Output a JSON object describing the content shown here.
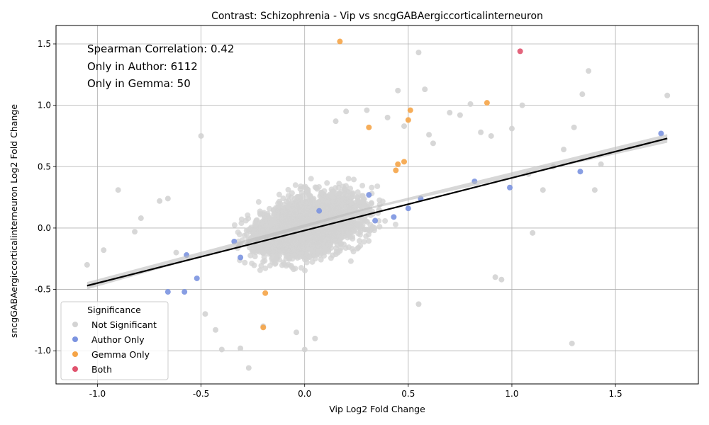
{
  "chart_data": {
    "type": "scatter",
    "title": "Contrast: Schizophrenia - Vip vs sncgGABAergiccorticalinterneuron",
    "xlabel": "Vip Log2 Fold Change",
    "ylabel": "sncgGABAergiccorticalinterneuron Log2 Fold Change",
    "xlim": [
      -1.2,
      1.9
    ],
    "ylim": [
      -1.27,
      1.65
    ],
    "xticks": [
      "-1.0",
      "-0.5",
      "0.0",
      "0.5",
      "1.0",
      "1.5"
    ],
    "yticks": [
      "-1.0",
      "-0.5",
      "0.0",
      "0.5",
      "1.0",
      "1.5"
    ],
    "grid": true,
    "annotations": [
      "Spearman Correlation: 0.42",
      "Only in Author: 6112",
      "Only in Gemma: 50"
    ],
    "legend": {
      "title": "Significance",
      "placement": "lower-left",
      "entries": [
        "Not Significant",
        "Author Only",
        "Gemma Only",
        "Both"
      ]
    },
    "colors": {
      "not_significant": "#d3d3d3",
      "author_only": "#7b93e0",
      "gemma_only": "#f5a447",
      "both": "#e0536e",
      "regression": "#000000",
      "confidence_band": "#bdbdbd"
    },
    "regression": {
      "x": [
        -1.05,
        1.75
      ],
      "y": [
        -0.47,
        0.73
      ]
    },
    "series": [
      {
        "name": "Not Significant",
        "note_points": "representative outliers; dense central cloud spans roughly x -0.5..0.6, y -0.6..0.6",
        "x": [
          -1.05,
          -0.97,
          -0.9,
          -0.82,
          -0.79,
          -0.7,
          -0.66,
          -0.62,
          -0.5,
          -0.48,
          -0.43,
          -0.4,
          -0.31,
          -0.27,
          -0.2,
          -0.04,
          0.0,
          0.05,
          0.15,
          0.2,
          0.3,
          0.4,
          0.45,
          0.48,
          0.55,
          0.58,
          0.6,
          0.62,
          0.7,
          0.75,
          0.8,
          0.85,
          0.9,
          0.95,
          1.0,
          1.05,
          1.08,
          1.1,
          1.15,
          1.2,
          1.25,
          1.3,
          1.34,
          1.37,
          1.4,
          1.43,
          1.75,
          1.29,
          0.92,
          0.55
        ],
        "y": [
          -0.3,
          -0.18,
          0.31,
          -0.03,
          0.08,
          0.22,
          0.24,
          -0.2,
          0.75,
          -0.7,
          -0.83,
          -0.99,
          -0.98,
          -1.14,
          -0.8,
          -0.85,
          -0.99,
          -0.9,
          0.87,
          0.95,
          0.96,
          0.9,
          1.12,
          0.83,
          1.43,
          1.13,
          0.76,
          0.69,
          0.94,
          0.92,
          1.01,
          0.78,
          0.75,
          -0.42,
          0.81,
          1.0,
          0.44,
          -0.04,
          0.31,
          0.5,
          0.64,
          0.82,
          1.09,
          1.28,
          0.31,
          0.52,
          1.08,
          -0.94,
          -0.4,
          -0.62
        ]
      },
      {
        "name": "Author Only",
        "x": [
          -0.66,
          -0.58,
          -0.57,
          -0.52,
          -0.34,
          -0.31,
          0.07,
          0.31,
          0.34,
          0.43,
          0.5,
          0.56,
          0.82,
          0.99,
          1.33,
          1.72
        ],
        "y": [
          -0.52,
          -0.52,
          -0.22,
          -0.41,
          -0.11,
          -0.24,
          0.14,
          0.27,
          0.06,
          0.09,
          0.16,
          0.24,
          0.38,
          0.33,
          0.46,
          0.77
        ]
      },
      {
        "name": "Gemma Only",
        "x": [
          0.17,
          0.31,
          0.44,
          0.45,
          0.48,
          0.5,
          0.51,
          0.88,
          -0.2,
          -0.19
        ],
        "y": [
          1.52,
          0.82,
          0.47,
          0.52,
          0.54,
          0.88,
          0.96,
          1.02,
          -0.81,
          -0.53
        ]
      },
      {
        "name": "Both",
        "x": [
          1.04
        ],
        "y": [
          1.44
        ]
      }
    ]
  }
}
